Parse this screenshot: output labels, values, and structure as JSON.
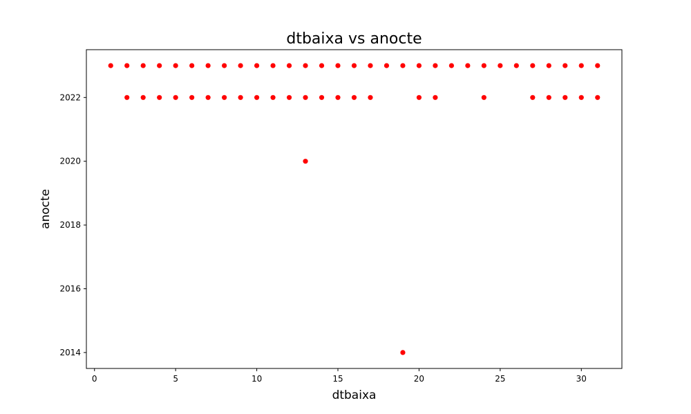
{
  "chart_data": {
    "type": "scatter",
    "title": "dtbaixa vs anocte",
    "xlabel": "dtbaixa",
    "ylabel": "anocte",
    "xlim": [
      -0.5,
      32.5
    ],
    "ylim": [
      2013.5,
      2023.5
    ],
    "xticks": [
      0,
      5,
      10,
      15,
      20,
      25,
      30
    ],
    "yticks": [
      2014,
      2016,
      2018,
      2020,
      2022
    ],
    "grid": false,
    "marker_color": "#ff0000",
    "series": [
      {
        "x": [
          1,
          2,
          3,
          4,
          5,
          6,
          7,
          8,
          9,
          10,
          11,
          12,
          13,
          14,
          15,
          16,
          17,
          18,
          19,
          20,
          21,
          22,
          23,
          24,
          25,
          26,
          27,
          28,
          29,
          30,
          31,
          2,
          3,
          4,
          5,
          6,
          7,
          8,
          9,
          10,
          11,
          12,
          13,
          14,
          15,
          16,
          17,
          20,
          21,
          24,
          27,
          28,
          29,
          30,
          31,
          13,
          19
        ],
        "y": [
          2023,
          2023,
          2023,
          2023,
          2023,
          2023,
          2023,
          2023,
          2023,
          2023,
          2023,
          2023,
          2023,
          2023,
          2023,
          2023,
          2023,
          2023,
          2023,
          2023,
          2023,
          2023,
          2023,
          2023,
          2023,
          2023,
          2023,
          2023,
          2023,
          2023,
          2023,
          2022,
          2022,
          2022,
          2022,
          2022,
          2022,
          2022,
          2022,
          2022,
          2022,
          2022,
          2022,
          2022,
          2022,
          2022,
          2022,
          2022,
          2022,
          2022,
          2022,
          2022,
          2022,
          2022,
          2022,
          2020,
          2014
        ]
      }
    ]
  }
}
